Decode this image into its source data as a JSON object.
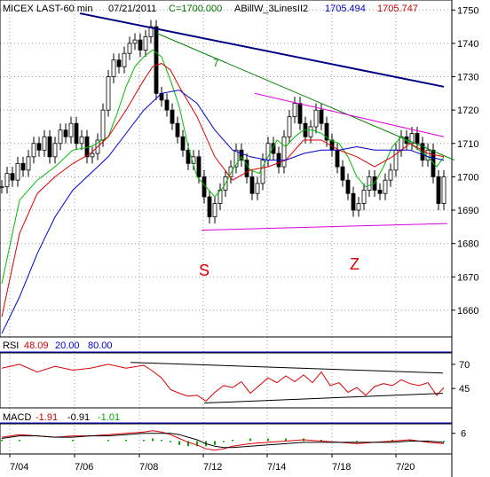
{
  "chart_data": {
    "type": "line",
    "header": {
      "instrument": "MICEX LAST-60 min",
      "date": "07/21/2011",
      "close": "C=1700.000",
      "indicator": "ABillW_3LinesII2",
      "ind_value_1": "1705.494",
      "ind_value_2": "1705.747"
    },
    "x_tick_labels": [
      "7/04",
      "7/06",
      "7/08",
      "7/12",
      "7/14",
      "7/18",
      "7/20"
    ],
    "price_axis": {
      "ylim": [
        1652,
        1753
      ],
      "ticks": [
        1660,
        1670,
        1680,
        1690,
        1700,
        1710,
        1720,
        1730,
        1740,
        1750
      ]
    },
    "annotations": [
      {
        "text": "7",
        "kind": "trendline-label"
      },
      {
        "text": "S",
        "kind": "pattern-label"
      },
      {
        "text": "Z",
        "kind": "pattern-label"
      }
    ],
    "price_series": [
      {
        "name": "price",
        "style": "candlestick",
        "x": [
          0,
          6,
          12,
          18,
          24,
          30,
          36,
          42,
          48,
          54,
          60,
          66,
          72,
          78,
          84,
          90,
          96,
          102,
          108,
          114,
          120,
          126,
          132,
          138,
          144,
          150,
          156,
          162,
          168,
          174,
          180,
          186,
          192,
          198,
          204,
          210,
          216,
          222,
          228,
          234,
          240,
          246,
          252,
          258,
          264,
          270,
          276,
          282,
          288,
          294,
          300,
          306,
          312,
          318,
          324,
          330,
          336,
          342,
          348,
          354,
          360,
          366,
          372,
          378,
          384,
          390,
          396,
          402,
          408,
          414,
          420,
          426,
          432,
          438,
          444,
          450,
          456,
          462,
          468,
          474,
          480,
          486,
          492,
          498
        ],
        "values": [
          1697,
          1701,
          1699,
          1704,
          1702,
          1706,
          1710,
          1708,
          1712,
          1706,
          1710,
          1714,
          1712,
          1716,
          1710,
          1712,
          1706,
          1707,
          1711,
          1720,
          1730,
          1735,
          1733,
          1737,
          1740,
          1741,
          1738,
          1742,
          1745,
          1725,
          1723,
          1720,
          1716,
          1712,
          1708,
          1704,
          1706,
          1700,
          1694,
          1688,
          1692,
          1696,
          1700,
          1703,
          1708,
          1705,
          1700,
          1695,
          1698,
          1705,
          1710,
          1707,
          1703,
          1712,
          1718,
          1722,
          1716,
          1712,
          1715,
          1720,
          1716,
          1711,
          1708,
          1703,
          1699,
          1695,
          1690,
          1692,
          1696,
          1700,
          1696,
          1695,
          1699,
          1702,
          1708,
          1712,
          1710,
          1713,
          1710,
          1705,
          1708,
          1700,
          1692,
          1700
        ]
      },
      {
        "name": "moving-average-green",
        "color": "#00bb00",
        "x": [
          0,
          20,
          40,
          60,
          80,
          100,
          120,
          130,
          140,
          150,
          160,
          170,
          180,
          190,
          200,
          210,
          220,
          230,
          240,
          250,
          260,
          270,
          280,
          290,
          300,
          310,
          320,
          330,
          340,
          350,
          360,
          370,
          380,
          390,
          400,
          410,
          420,
          430,
          440,
          450,
          460,
          470,
          480,
          490,
          498
        ],
        "values": [
          1668,
          1693,
          1699,
          1703,
          1708,
          1709,
          1712,
          1719,
          1727,
          1733,
          1736,
          1738,
          1736,
          1729,
          1721,
          1709,
          1700,
          1697,
          1694,
          1697,
          1702,
          1706,
          1702,
          1701,
          1706,
          1711,
          1709,
          1712,
          1714,
          1714,
          1713,
          1711,
          1710,
          1706,
          1700,
          1697,
          1698,
          1703,
          1709,
          1712,
          1710,
          1708,
          1706,
          1703,
          1706
        ]
      },
      {
        "name": "moving-average-red",
        "color": "#dd0000",
        "x": [
          0,
          20,
          40,
          60,
          80,
          100,
          120,
          140,
          160,
          170,
          180,
          190,
          200,
          220,
          240,
          260,
          280,
          300,
          320,
          340,
          360,
          380,
          400,
          420,
          440,
          460,
          480,
          498
        ],
        "values": [
          1658,
          1683,
          1695,
          1700,
          1704,
          1707,
          1712,
          1720,
          1729,
          1733,
          1734,
          1732,
          1727,
          1718,
          1706,
          1699,
          1702,
          1703,
          1705,
          1711,
          1711,
          1708,
          1706,
          1703,
          1706,
          1710,
          1707,
          1706
        ]
      },
      {
        "name": "moving-average-blue",
        "color": "#0000cc",
        "x": [
          0,
          20,
          40,
          60,
          80,
          100,
          120,
          140,
          160,
          180,
          200,
          220,
          240,
          260,
          280,
          300,
          320,
          340,
          360,
          380,
          400,
          420,
          440,
          460,
          480,
          498
        ],
        "values": [
          1653,
          1664,
          1677,
          1688,
          1696,
          1701,
          1706,
          1713,
          1720,
          1725,
          1726,
          1722,
          1714,
          1708,
          1706,
          1705,
          1705,
          1707,
          1708,
          1708,
          1709,
          1708,
          1708,
          1708,
          1706,
          1705
        ]
      }
    ],
    "trendlines": [
      {
        "name": "descending-resistance",
        "color": "#000080",
        "x": [
          88,
          498
        ],
        "values": [
          1749,
          1727
        ]
      },
      {
        "name": "trendline-7",
        "color": "#008000",
        "x": [
          175,
          510
        ],
        "values": [
          1743,
          1705
        ]
      },
      {
        "name": "upper-channel",
        "color": "#dd00dd",
        "x": [
          285,
          498
        ],
        "values": [
          1725,
          1712
        ]
      },
      {
        "name": "lower-support",
        "color": "#dd00dd",
        "x": [
          225,
          502
        ],
        "values": [
          1684,
          1686
        ]
      }
    ],
    "rsi_panel": {
      "label": "RSI",
      "value": "48.09",
      "lower_band": "20.00",
      "upper_band": "80.00",
      "ticks": [
        70,
        45
      ],
      "ylim": [
        25,
        80
      ],
      "x": [
        0,
        20,
        40,
        60,
        80,
        100,
        120,
        140,
        160,
        170,
        180,
        190,
        200,
        210,
        220,
        230,
        240,
        250,
        260,
        270,
        280,
        290,
        300,
        310,
        320,
        330,
        340,
        350,
        360,
        370,
        380,
        390,
        400,
        410,
        420,
        430,
        440,
        450,
        460,
        470,
        480,
        490,
        498
      ],
      "values": [
        66,
        70,
        62,
        68,
        64,
        66,
        70,
        66,
        69,
        63,
        56,
        44,
        40,
        37,
        38,
        32,
        41,
        48,
        46,
        52,
        40,
        48,
        56,
        51,
        58,
        52,
        59,
        51,
        62,
        48,
        51,
        41,
        46,
        38,
        47,
        50,
        48,
        54,
        50,
        48,
        51,
        38,
        46
      ],
      "trendlines": [
        {
          "name": "rsi-upper-trendline",
          "color": "#000000",
          "x": [
            145,
            497
          ],
          "values": [
            72,
            61
          ]
        },
        {
          "name": "rsi-lower-trendline",
          "color": "#000000",
          "x": [
            228,
            497
          ],
          "values": [
            30,
            40
          ]
        }
      ]
    },
    "macd_panel": {
      "label": "MACD",
      "value": "-1.91",
      "signal": "-0.91",
      "histogram": "-1.01",
      "ticks": [
        6
      ],
      "ylim": [
        -10,
        12
      ],
      "x": [
        0,
        20,
        40,
        60,
        80,
        100,
        120,
        140,
        160,
        170,
        180,
        190,
        200,
        210,
        220,
        230,
        240,
        250,
        260,
        280,
        300,
        320,
        340,
        360,
        380,
        400,
        420,
        440,
        460,
        480,
        498
      ],
      "macd": [
        3,
        5,
        4,
        3,
        4,
        4,
        5,
        6,
        7,
        8,
        7,
        5,
        2,
        -1,
        -3,
        -6,
        -7,
        -6,
        -4,
        -2,
        -1,
        0,
        1,
        0,
        -1,
        -2,
        -1,
        0,
        1,
        -1,
        -2
      ],
      "signal_values": [
        2,
        4,
        4,
        3,
        3,
        4,
        4,
        5,
        6,
        6,
        6,
        6,
        5,
        3,
        1,
        -2,
        -4,
        -5,
        -5,
        -4,
        -3,
        -2,
        -1,
        -1,
        -1,
        -1,
        -1,
        -1,
        0,
        0,
        -1
      ]
    },
    "grid": true,
    "legend": "none"
  }
}
